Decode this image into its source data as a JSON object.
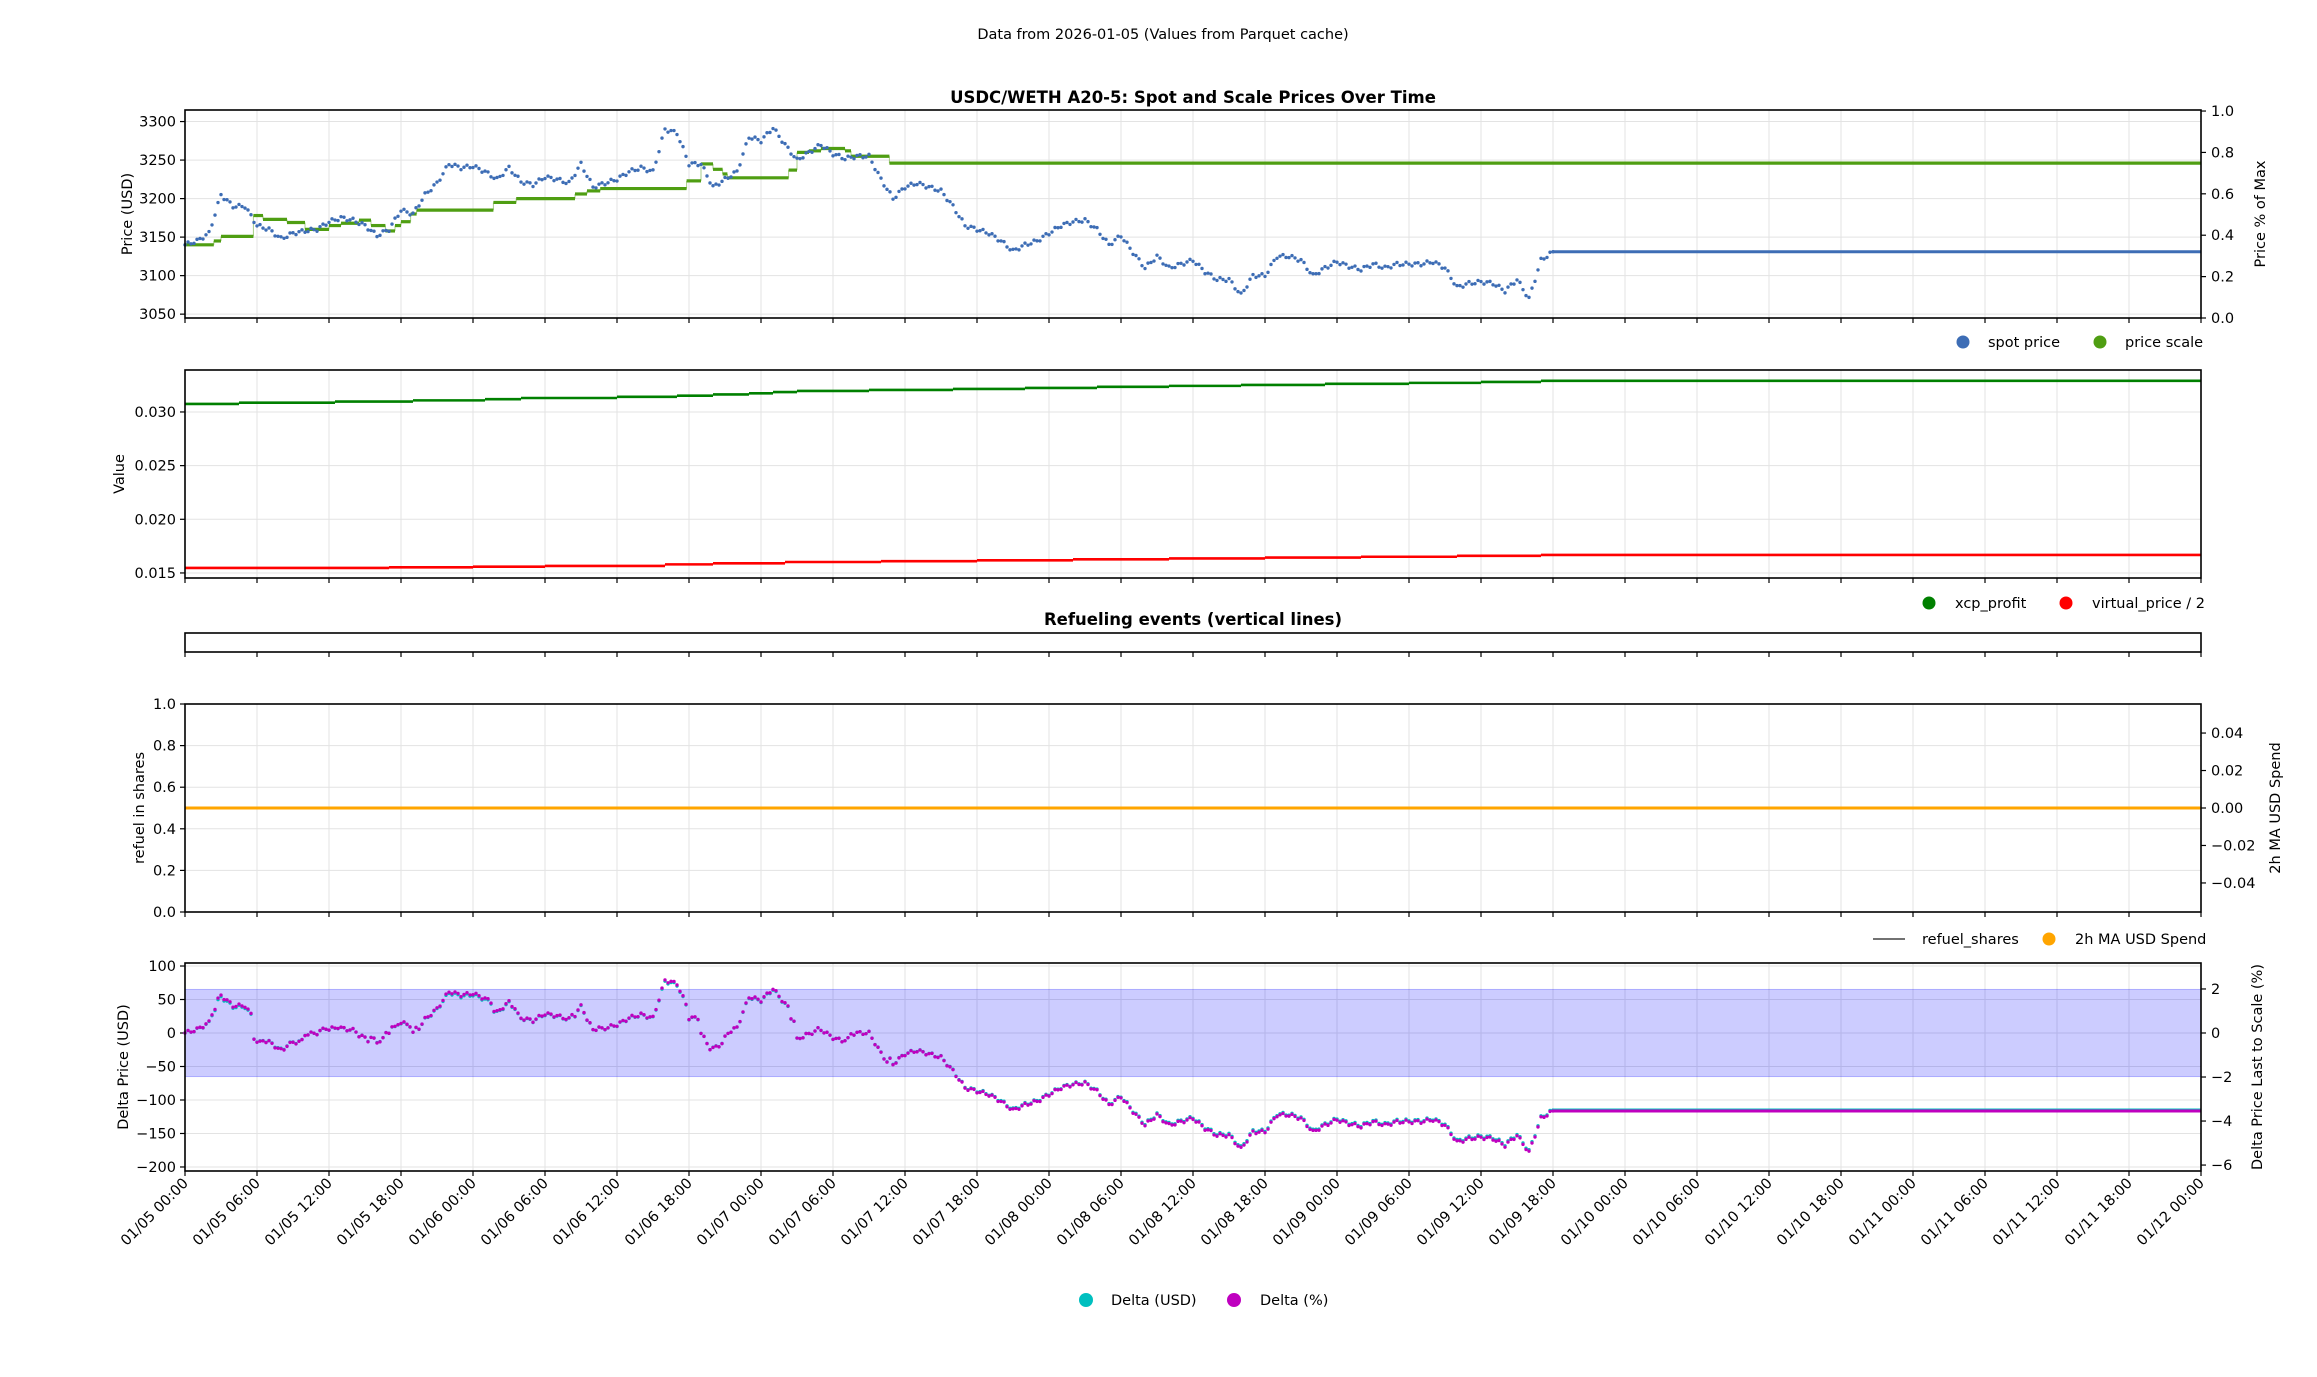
{
  "figure": {
    "suptitle": "Data from 2026-01-05 (Values from Parquet cache)",
    "x_tick_labels": [
      "01/05 00:00",
      "01/05 06:00",
      "01/05 12:00",
      "01/05 18:00",
      "01/06 00:00",
      "01/06 06:00",
      "01/06 12:00",
      "01/06 18:00",
      "01/07 00:00",
      "01/07 06:00",
      "01/07 12:00",
      "01/07 18:00",
      "01/08 00:00",
      "01/08 06:00",
      "01/08 12:00",
      "01/08 18:00",
      "01/09 00:00",
      "01/09 06:00",
      "01/09 12:00",
      "01/09 18:00",
      "01/10 00:00",
      "01/10 06:00",
      "01/10 12:00",
      "01/10 18:00",
      "01/11 00:00",
      "01/11 06:00",
      "01/11 12:00",
      "01/11 18:00",
      "01/12 00:00"
    ],
    "x_range_hours": [
      0,
      168
    ],
    "x_tick_step_hours": 6
  },
  "chart_data": [
    {
      "type": "scatter",
      "title": "USDC/WETH A20-5: Spot and Scale Prices Over Time",
      "ylabel": "Price (USD)",
      "y2label": "Price % of Max",
      "ylim": [
        3045,
        3315
      ],
      "y2lim": [
        0,
        1.005
      ],
      "yticks": [
        "3050",
        "3100",
        "3150",
        "3200",
        "3250",
        "3300"
      ],
      "y2ticks": [
        "0.0",
        "0.2",
        "0.4",
        "0.6",
        "0.8",
        "1.0"
      ],
      "grid": true,
      "legend": "bottom-right, below axes",
      "legend_entries": [
        "spot price",
        "price scale"
      ],
      "series": [
        {
          "name": "spot price",
          "color": "#3d6db5",
          "x_unit": "hours since 01/05 00:00",
          "hourly_values": [
            3140,
            3145,
            3155,
            3205,
            3190,
            3190,
            3165,
            3160,
            3148,
            3155,
            3158,
            3160,
            3170,
            3175,
            3172,
            3165,
            3152,
            3160,
            3185,
            3180,
            3205,
            3220,
            3245,
            3240,
            3242,
            3235,
            3225,
            3240,
            3222,
            3218,
            3228,
            3225,
            3220,
            3245,
            3215,
            3220,
            3225,
            3235,
            3240,
            3235,
            3290,
            3285,
            3245,
            3245,
            3215,
            3225,
            3235,
            3280,
            3275,
            3292,
            3270,
            3250,
            3260,
            3270,
            3258,
            3252,
            3255,
            3255,
            3225,
            3200,
            3215,
            3220,
            3215,
            3210,
            3190,
            3165,
            3160,
            3155,
            3145,
            3132,
            3140,
            3145,
            3155,
            3165,
            3170,
            3172,
            3160,
            3140,
            3152,
            3130,
            3110,
            3125,
            3110,
            3115,
            3120,
            3105,
            3095,
            3095,
            3075,
            3100,
            3100,
            3125,
            3125,
            3120,
            3100,
            3110,
            3118,
            3112,
            3108,
            3115,
            3110,
            3115,
            3115,
            3115,
            3118,
            3110,
            3085,
            3090,
            3092,
            3090,
            3080,
            3095,
            3070,
            3120,
            3131
          ],
          "hold_value": 3131,
          "hold_until_hour": 168
        },
        {
          "name": "price scale",
          "color": "#4f9e12",
          "steps": [
            [
              0,
              3140
            ],
            [
              2.4,
              3145
            ],
            [
              3,
              3151
            ],
            [
              5.7,
              3178
            ],
            [
              6.5,
              3173
            ],
            [
              8.5,
              3169
            ],
            [
              10,
              3160
            ],
            [
              12,
              3165
            ],
            [
              13,
              3168
            ],
            [
              14.5,
              3172
            ],
            [
              15.5,
              3165
            ],
            [
              16.7,
              3158
            ],
            [
              17.5,
              3165
            ],
            [
              18,
              3170
            ],
            [
              18.8,
              3180
            ],
            [
              19.3,
              3185
            ],
            [
              25.7,
              3195
            ],
            [
              27.6,
              3200
            ],
            [
              32.5,
              3206
            ],
            [
              33.5,
              3210
            ],
            [
              34.6,
              3213
            ],
            [
              41.8,
              3223
            ],
            [
              43,
              3245
            ],
            [
              44,
              3238
            ],
            [
              44.8,
              3232
            ],
            [
              45.2,
              3227
            ],
            [
              50.3,
              3237
            ],
            [
              51,
              3260
            ],
            [
              52,
              3262
            ],
            [
              53,
              3265
            ],
            [
              55,
              3262
            ],
            [
              55.5,
              3255
            ],
            [
              58.7,
              3246
            ]
          ],
          "hold_until_hour": 168
        }
      ]
    },
    {
      "type": "line",
      "title": "",
      "ylabel": "Value",
      "ylim": [
        0.01453,
        0.03391
      ],
      "yticks": [
        "0.015",
        "0.020",
        "0.025",
        "0.030"
      ],
      "grid": true,
      "legend": "bottom-right, below axes",
      "legend_entries": [
        "xcp_profit",
        "virtual_price / 2"
      ],
      "series": [
        {
          "name": "xcp_profit",
          "color": "#008000",
          "steps": [
            [
              0,
              0.03075
            ],
            [
              4.5,
              0.03086
            ],
            [
              12.5,
              0.03097
            ],
            [
              19,
              0.03108
            ],
            [
              25,
              0.03119
            ],
            [
              28,
              0.0313
            ],
            [
              36,
              0.03141
            ],
            [
              41,
              0.03152
            ],
            [
              44,
              0.03163
            ],
            [
              47,
              0.03174
            ],
            [
              49,
              0.03185
            ],
            [
              51,
              0.03196
            ],
            [
              57,
              0.03205
            ],
            [
              64,
              0.03215
            ],
            [
              70,
              0.03224
            ],
            [
              76,
              0.03234
            ],
            [
              82,
              0.03243
            ],
            [
              88,
              0.03252
            ],
            [
              95,
              0.03262
            ],
            [
              102,
              0.03271
            ],
            [
              108,
              0.0328
            ],
            [
              113,
              0.0329
            ]
          ],
          "hold_until_hour": 168
        },
        {
          "name": "virtual_price / 2",
          "color": "#ff0000",
          "steps": [
            [
              0,
              0.01547
            ],
            [
              17,
              0.01553
            ],
            [
              24,
              0.01558
            ],
            [
              30,
              0.01565
            ],
            [
              40,
              0.0158
            ],
            [
              44,
              0.0159
            ],
            [
              50,
              0.01602
            ],
            [
              58,
              0.0161
            ],
            [
              66,
              0.01618
            ],
            [
              74,
              0.01627
            ],
            [
              82,
              0.01635
            ],
            [
              90,
              0.01643
            ],
            [
              98,
              0.01651
            ],
            [
              106,
              0.0166
            ],
            [
              113,
              0.01668
            ]
          ],
          "hold_until_hour": 168
        }
      ]
    },
    {
      "type": "line",
      "title": "Refueling events (vertical lines)",
      "events": []
    },
    {
      "type": "line",
      "title": "",
      "ylabel": "refuel in shares",
      "y2label": "2h MA USD Spend",
      "ylim": [
        0,
        1
      ],
      "y2lim": [
        -0.0555,
        0.0555
      ],
      "yticks": [
        "0.0",
        "0.2",
        "0.4",
        "0.6",
        "0.8",
        "1.0"
      ],
      "y2ticks": [
        "−0.04",
        "−0.02",
        "0.00",
        "0.02",
        "0.04"
      ],
      "y2_tick_values": [
        -0.04,
        -0.02,
        0,
        0.02,
        0.04
      ],
      "grid": true,
      "legend": "bottom-right, below axes",
      "legend_entries": [
        "refuel_shares",
        "2h MA USD Spend"
      ],
      "series": [
        {
          "name": "refuel_shares",
          "color": "#444444",
          "values": []
        },
        {
          "name": "2h MA USD Spend",
          "color": "#ffa500",
          "constant_value": 0.0,
          "x_range_hours": [
            0,
            168
          ]
        }
      ]
    },
    {
      "type": "scatter",
      "title": "",
      "ylabel": "Delta Price (USD)",
      "y2label": "Delta Price Last to Scale (%)",
      "ylim": [
        -206,
        104.5
      ],
      "y2lim": [
        -6.27,
        3.18
      ],
      "yticks": [
        "−200",
        "−150",
        "−100",
        "−50",
        "0",
        "50",
        "100"
      ],
      "ytick_values": [
        -200,
        -150,
        -100,
        -50,
        0,
        50,
        100
      ],
      "y2ticks": [
        "−6",
        "−4",
        "−2",
        "0",
        "2"
      ],
      "y2tick_values": [
        -6,
        -4,
        -2,
        0,
        2
      ],
      "band_usd": [
        -65,
        65
      ],
      "band_pct": [
        -2,
        2
      ],
      "band_color": "#0000ff",
      "grid": true,
      "legend": "bottom-center, over x tick labels",
      "legend_entries": [
        "Delta (USD)",
        "Delta (%)"
      ],
      "series": [
        {
          "name": "Delta (USD)",
          "color": "#00bfbf",
          "definition": "spot price - price scale"
        },
        {
          "name": "Delta (%)",
          "color": "#bf00bf",
          "definition": "(spot price - price scale) / price scale * 100"
        }
      ]
    }
  ]
}
